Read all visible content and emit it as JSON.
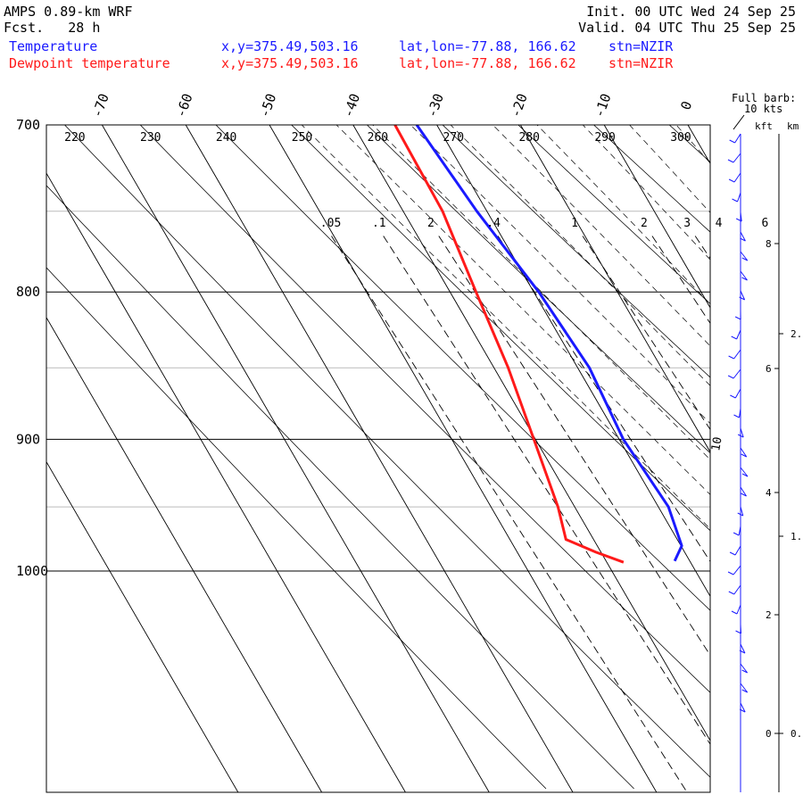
{
  "header": {
    "model": "AMPS 0.89-km WRF",
    "fcst_label": "Fcst.",
    "fcst_value": "28 h",
    "init": "Init. 00 UTC Wed 24 Sep 25",
    "valid": "Valid. 04 UTC Thu 25 Sep 25"
  },
  "legend": [
    {
      "name": "Temperature",
      "xy": "x,y=375.49,503.16",
      "latlon": "lat,lon=-77.88, 166.62",
      "stn": "stn=NZIR",
      "color": "#1a1aff"
    },
    {
      "name": "Dewpoint temperature",
      "xy": "x,y=375.49,503.16",
      "latlon": "lat,lon=-77.88, 166.62",
      "stn": "stn=NZIR",
      "color": "#ff1a1a"
    }
  ],
  "barb_label": {
    "line1": "Full barb:",
    "line2": "10 kts",
    "kft": "kft",
    "km": "km"
  },
  "chart_data": {
    "type": "line",
    "pressure_ticks": [
      "700",
      "800",
      "900",
      "1000"
    ],
    "temp_ticks": [
      "-70",
      "-60",
      "-50",
      "-40",
      "-30",
      "-20",
      "-10",
      "0"
    ],
    "theta_labels": [
      "220",
      "230",
      "240",
      "250",
      "260",
      "270",
      "280",
      "290",
      "300"
    ],
    "mixing_ratio_labels": [
      ".05",
      ".1",
      "2",
      ".4",
      "1",
      "2",
      "3",
      "4",
      "6"
    ],
    "kft_labels": [
      "8",
      "6",
      "4",
      "2",
      "0"
    ],
    "km_labels": [
      "2.",
      "1.",
      "0."
    ],
    "wind_label": "10",
    "series": [
      {
        "name": "Temperature",
        "color": "#1a1aff",
        "points": [
          [
            700,
            -32.4
          ],
          [
            750,
            -31.2
          ],
          [
            800,
            -29.4
          ],
          [
            850,
            -28.6
          ],
          [
            900,
            -29.5
          ],
          [
            950,
            -28.8
          ],
          [
            980,
            -29.9
          ],
          [
            992,
            -31.8
          ]
        ]
      },
      {
        "name": "Dewpoint temperature",
        "color": "#ff1a1a",
        "points": [
          [
            700,
            -35.0
          ],
          [
            750,
            -35.3
          ],
          [
            800,
            -36.9
          ],
          [
            850,
            -38.3
          ],
          [
            900,
            -40.2
          ],
          [
            950,
            -42.0
          ],
          [
            975,
            -43.3
          ],
          [
            985,
            -40.6
          ],
          [
            993,
            -38.0
          ]
        ]
      }
    ]
  }
}
